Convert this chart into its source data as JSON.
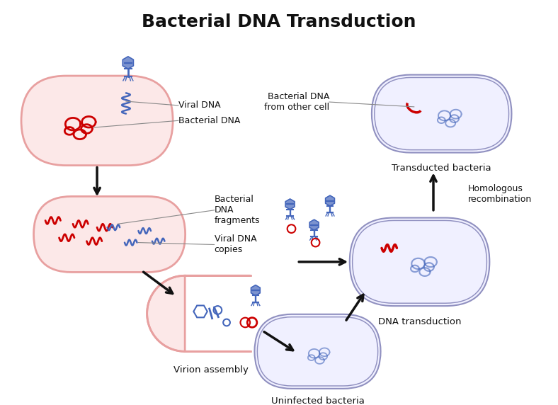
{
  "title": "Bacterial DNA Transduction",
  "title_fontsize": 18,
  "title_fontweight": "bold",
  "labels": {
    "viral_dna": "Viral DNA",
    "bacterial_dna": "Bacterial DNA",
    "bacterial_dna_fragments": "Bacterial\nDNA\nfragments",
    "viral_dna_copies": "Viral DNA\ncopies",
    "virion_assembly": "Virion assembly",
    "dna_transduction": "DNA transduction",
    "uninfected_bacteria": "Uninfected bacteria",
    "transducted_bacteria": "Transducted bacteria",
    "homologous_recombination": "Homologous\nrecombination",
    "bacterial_dna_other": "Bacterial DNA\nfrom other cell"
  },
  "colors": {
    "background": "#ffffff",
    "cell_fill_pink": "#fce8e8",
    "cell_fill_blue": "#eeeeff",
    "cell_fill_light_blue": "#f0f0ff",
    "cell_stroke_pink": "#e8a0a0",
    "cell_stroke_blue": "#9090c0",
    "bacterial_dna_red": "#cc0000",
    "viral_dna_blue": "#4466bb",
    "phage_blue": "#5577bb",
    "label_line": "#888888",
    "arrow_color": "#111111",
    "text_color": "#111111"
  }
}
